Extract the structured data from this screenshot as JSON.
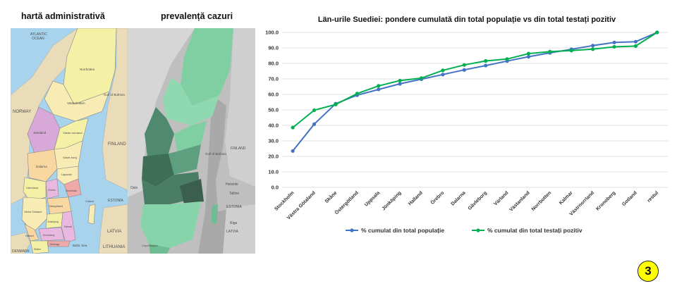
{
  "maps": {
    "admin": {
      "title": "hartă administrativă",
      "labels": {
        "atlantic": "ATLANTIC",
        "ocean": "OCEAN",
        "norway": "NORWAY",
        "finland": "FINLAND",
        "estonia": "ESTONIA",
        "latvia": "LATVIA",
        "lithuania": "LITHUANIA",
        "denmark": "DENMARK",
        "baltic": "Baltic Sea",
        "norrbotten": "Norrbotten",
        "vasterbotten": "Västerbotten",
        "jamtland": "Jämtland",
        "vasternorrland": "Väster-norrland",
        "dalarna": "Dalarna",
        "gavleborg": "Gävle-borg",
        "varmland": "Värmland",
        "uppsala": "Uppsala",
        "stockholm": "Stockholm",
        "ostergotland": "Östergötland",
        "vastra_gotaland": "Västra Götaland",
        "jonkoping": "Jönköping",
        "kalmar": "Kalmar",
        "kronoberg": "Kronoberg",
        "halland": "Halland",
        "blekinge": "Blekinge",
        "skane": "Skåne",
        "gotland": "Gotland",
        "orebro": "Örebro",
        "gulf": "Gulf of Bothnia"
      }
    },
    "prevalence": {
      "title": "prevalență cazuri",
      "labels": {
        "oslo": "Oslo",
        "helsinki": "Helsinki",
        "tallinn": "Tallinn",
        "estonia": "ESTONIA",
        "riga": "Riga",
        "latvia": "LATVIA",
        "finland": "FINLAND",
        "gulf": "Gulf of Bothnia",
        "copenhagen": "Copenhagen"
      }
    }
  },
  "colors": {
    "population": "#4472c4",
    "positive": "#00b050",
    "badge": "#ffff00"
  },
  "chart_data": {
    "type": "line",
    "title": "Län-urile Suediei: pondere cumulată din total populație vs din total testați pozitiv",
    "xlabel": "",
    "ylabel": "",
    "ylim": [
      0,
      100
    ],
    "y_ticks": [
      "0.0",
      "10.0",
      "20.0",
      "30.0",
      "40.0",
      "50.0",
      "60.0",
      "70.0",
      "80.0",
      "90.0",
      "100.0"
    ],
    "grid": true,
    "legend_position": "bottom",
    "categories": [
      "Stockholm",
      "Västra Götaland",
      "Skåne",
      "Östergötland",
      "Uppsala",
      "Jönköping",
      "Halland",
      "Örebro",
      "Dalarna",
      "Gävleborg",
      "Värland",
      "Västanland",
      "Norrbotten",
      "Kalmar",
      "Västrnorrland",
      "Kronoberg",
      "Gotland",
      "restul"
    ],
    "series": [
      {
        "name": "% cumulat din total populație",
        "color": "#4472c4",
        "values": [
          23.5,
          40.8,
          54.0,
          59.5,
          63.2,
          66.8,
          69.8,
          72.8,
          75.8,
          78.6,
          81.5,
          84.3,
          86.8,
          89.1,
          91.5,
          93.5,
          94.0,
          100.0
        ]
      },
      {
        "name": "% cumulat din total testați pozitiv",
        "color": "#00b050",
        "values": [
          38.6,
          49.8,
          53.5,
          60.5,
          65.5,
          68.9,
          70.5,
          75.5,
          79.0,
          81.6,
          82.8,
          86.3,
          87.6,
          88.3,
          89.2,
          90.7,
          91.2,
          100.0
        ]
      }
    ]
  },
  "badge": {
    "label": "3"
  }
}
